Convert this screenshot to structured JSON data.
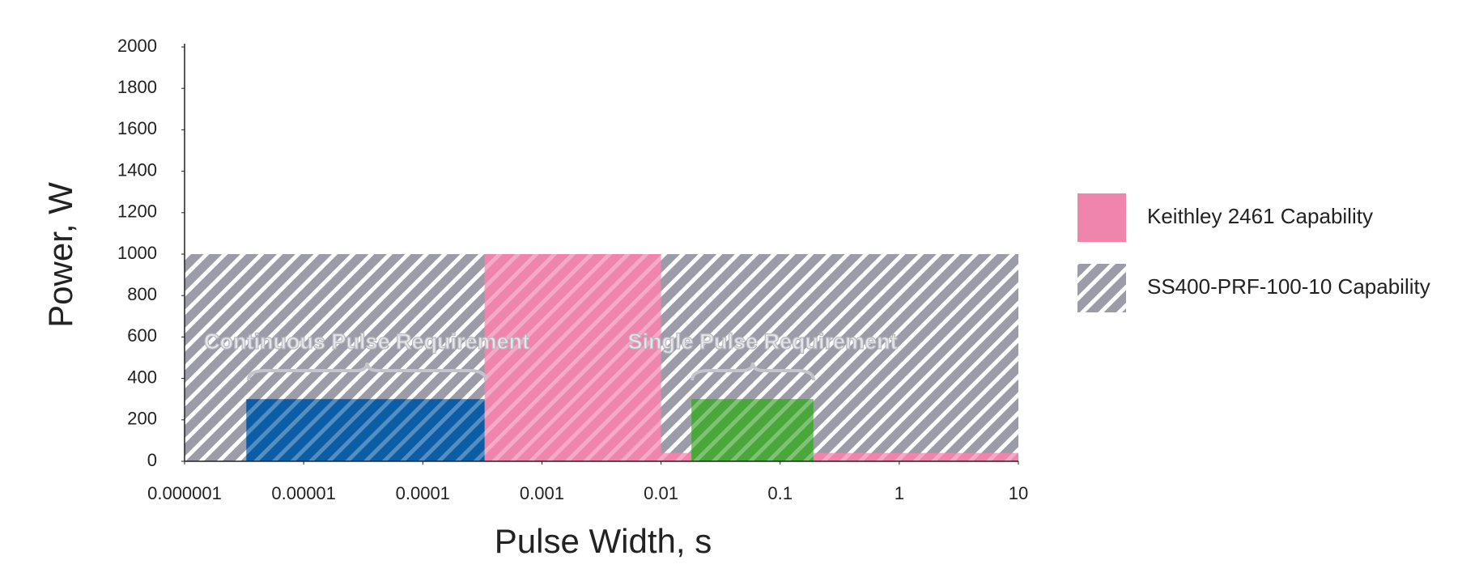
{
  "chart_data": {
    "type": "range-bar",
    "x_label": "Pulse Width, s",
    "y_label": "Power, W",
    "xscale": "log",
    "xlim": [
      1e-06,
      10
    ],
    "xticks": [
      1e-06,
      1e-05,
      0.0001,
      0.001,
      0.01,
      0.1,
      1,
      10
    ],
    "ylim": [
      0,
      2000
    ],
    "yticks": [
      0,
      200,
      400,
      600,
      800,
      1000,
      1200,
      1400,
      1600,
      1800,
      2000
    ],
    "legend": "right",
    "series": [
      {
        "name": "SS400-PRF-100-10 Capability",
        "color": "#9c9ca8",
        "hatch": true,
        "x": [
          [
            1e-06,
            10
          ]
        ],
        "values": [
          1000
        ]
      },
      {
        "name": "Keithley 2461 Capability",
        "color": "#ef85ad",
        "hatch": false,
        "x": [
          [
            0.00033,
            0.01
          ],
          [
            0.01,
            10
          ]
        ],
        "values": [
          1000,
          40
        ]
      },
      {
        "color": "#0b5ea6",
        "hatch": false,
        "x": [
          [
            3.3e-06,
            0.00033
          ]
        ],
        "values": [
          300
        ]
      },
      {
        "color": "#4aa83a",
        "hatch": false,
        "x": [
          [
            0.018,
            0.19
          ]
        ],
        "values": [
          300
        ]
      }
    ],
    "annotations": [
      "Continuous Pulse Requirement",
      "Single Pulse Requirement"
    ]
  }
}
